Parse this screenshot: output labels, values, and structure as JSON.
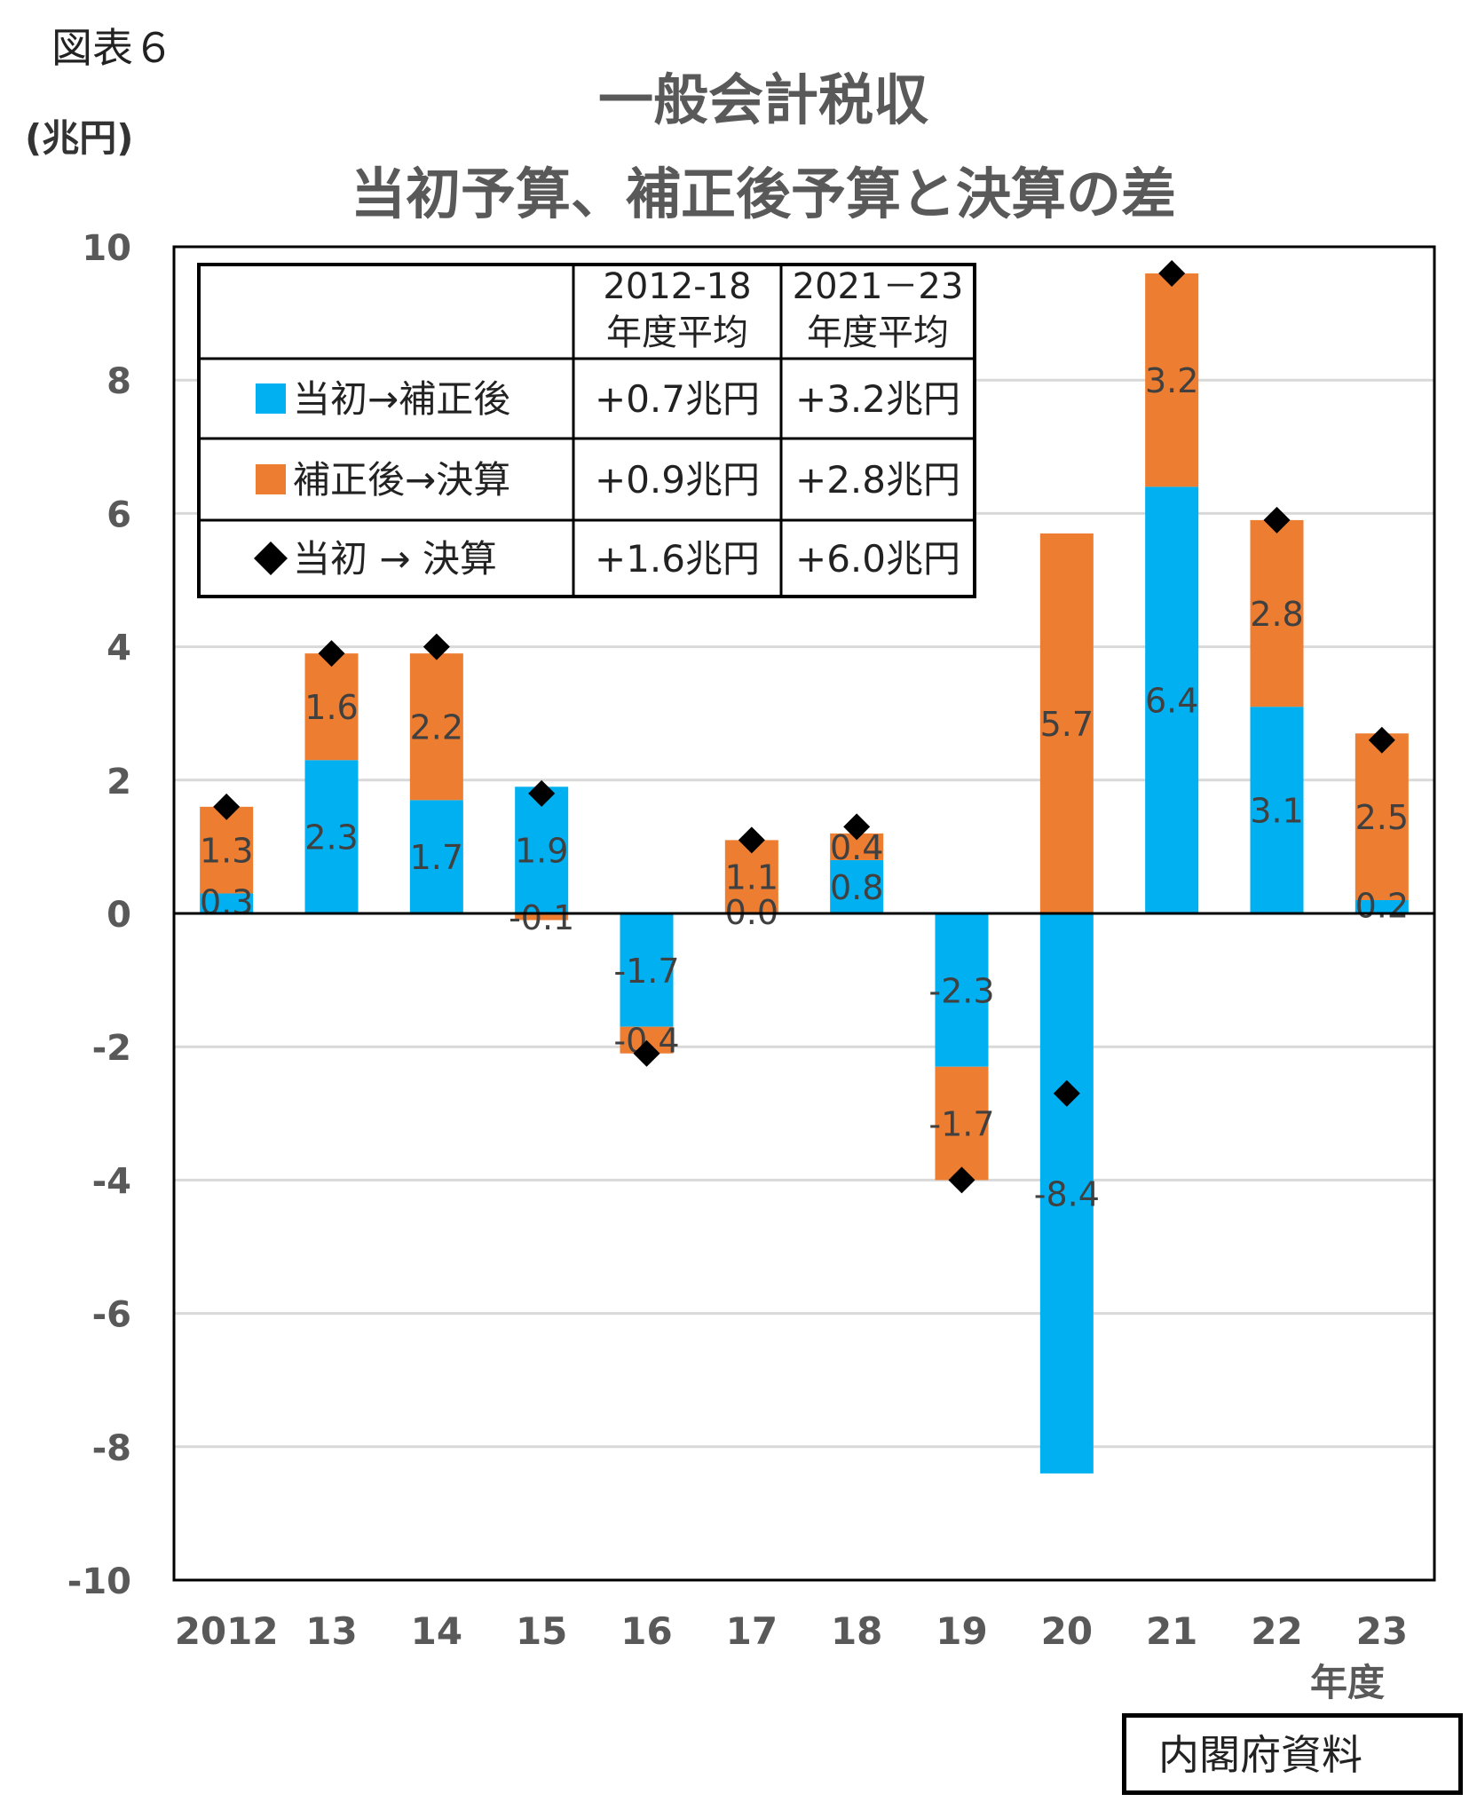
{
  "figure_label": "図表６",
  "unit_label": "(兆円)",
  "source_label": "内閣府資料",
  "colors": {
    "initial_to_revised": "#00B0F0",
    "revised_to_settled": "#ED7D31",
    "marker": "#000000",
    "grid": "#d9d9d9"
  },
  "chart_data": {
    "type": "bar",
    "stacked": true,
    "title": "一般会計税収",
    "subtitle": "当初予算、補正後予算と決算の差",
    "xlabel": "年度",
    "ylabel": "(兆円)",
    "ylim": [
      -10,
      10
    ],
    "yticks": [
      10,
      8,
      6,
      4,
      2,
      0,
      -2,
      -4,
      -6,
      -8,
      -10
    ],
    "grid": true,
    "categories": [
      "2012",
      "13",
      "14",
      "15",
      "16",
      "17",
      "18",
      "19",
      "20",
      "21",
      "22",
      "23"
    ],
    "series": [
      {
        "name": "当初→補正後",
        "kind": "bar",
        "values": [
          0.3,
          2.3,
          1.7,
          1.9,
          -1.7,
          0.0,
          0.8,
          -2.3,
          -8.4,
          6.4,
          3.1,
          0.2
        ],
        "labels": [
          "0.3",
          "2.3",
          "1.7",
          "1.9",
          "-1.7",
          "0.0",
          "0.8",
          "-2.3",
          "-8.4",
          "6.4",
          "3.1",
          "0.2"
        ]
      },
      {
        "name": "補正後→決算",
        "kind": "bar",
        "values": [
          1.3,
          1.6,
          2.2,
          -0.1,
          -0.4,
          1.1,
          0.4,
          -1.7,
          5.7,
          3.2,
          2.8,
          2.5
        ],
        "labels": [
          "1.3",
          "1.6",
          "2.2",
          "-0.1",
          "-0.4",
          "1.1",
          "0.4",
          "-1.7",
          "5.7",
          "3.2",
          "2.8",
          "2.5"
        ]
      },
      {
        "name": "当初 → 決算",
        "kind": "marker",
        "values": [
          1.6,
          3.9,
          4.0,
          1.8,
          -2.1,
          1.1,
          1.3,
          -4.0,
          -2.7,
          9.6,
          5.9,
          2.6
        ]
      }
    ],
    "legend_table": {
      "headers": [
        "",
        "2012-18\n年度平均",
        "2021－23\n年度平均"
      ],
      "rows": [
        {
          "label": "当初→補正後",
          "values": [
            "+0.7兆円",
            "+3.2兆円"
          ]
        },
        {
          "label": "補正後→決算",
          "values": [
            "+0.9兆円",
            "+2.8兆円"
          ]
        },
        {
          "label": "当初 → 決算",
          "values": [
            "+1.6兆円",
            "+6.0兆円"
          ]
        }
      ],
      "placement": "top-left"
    }
  }
}
